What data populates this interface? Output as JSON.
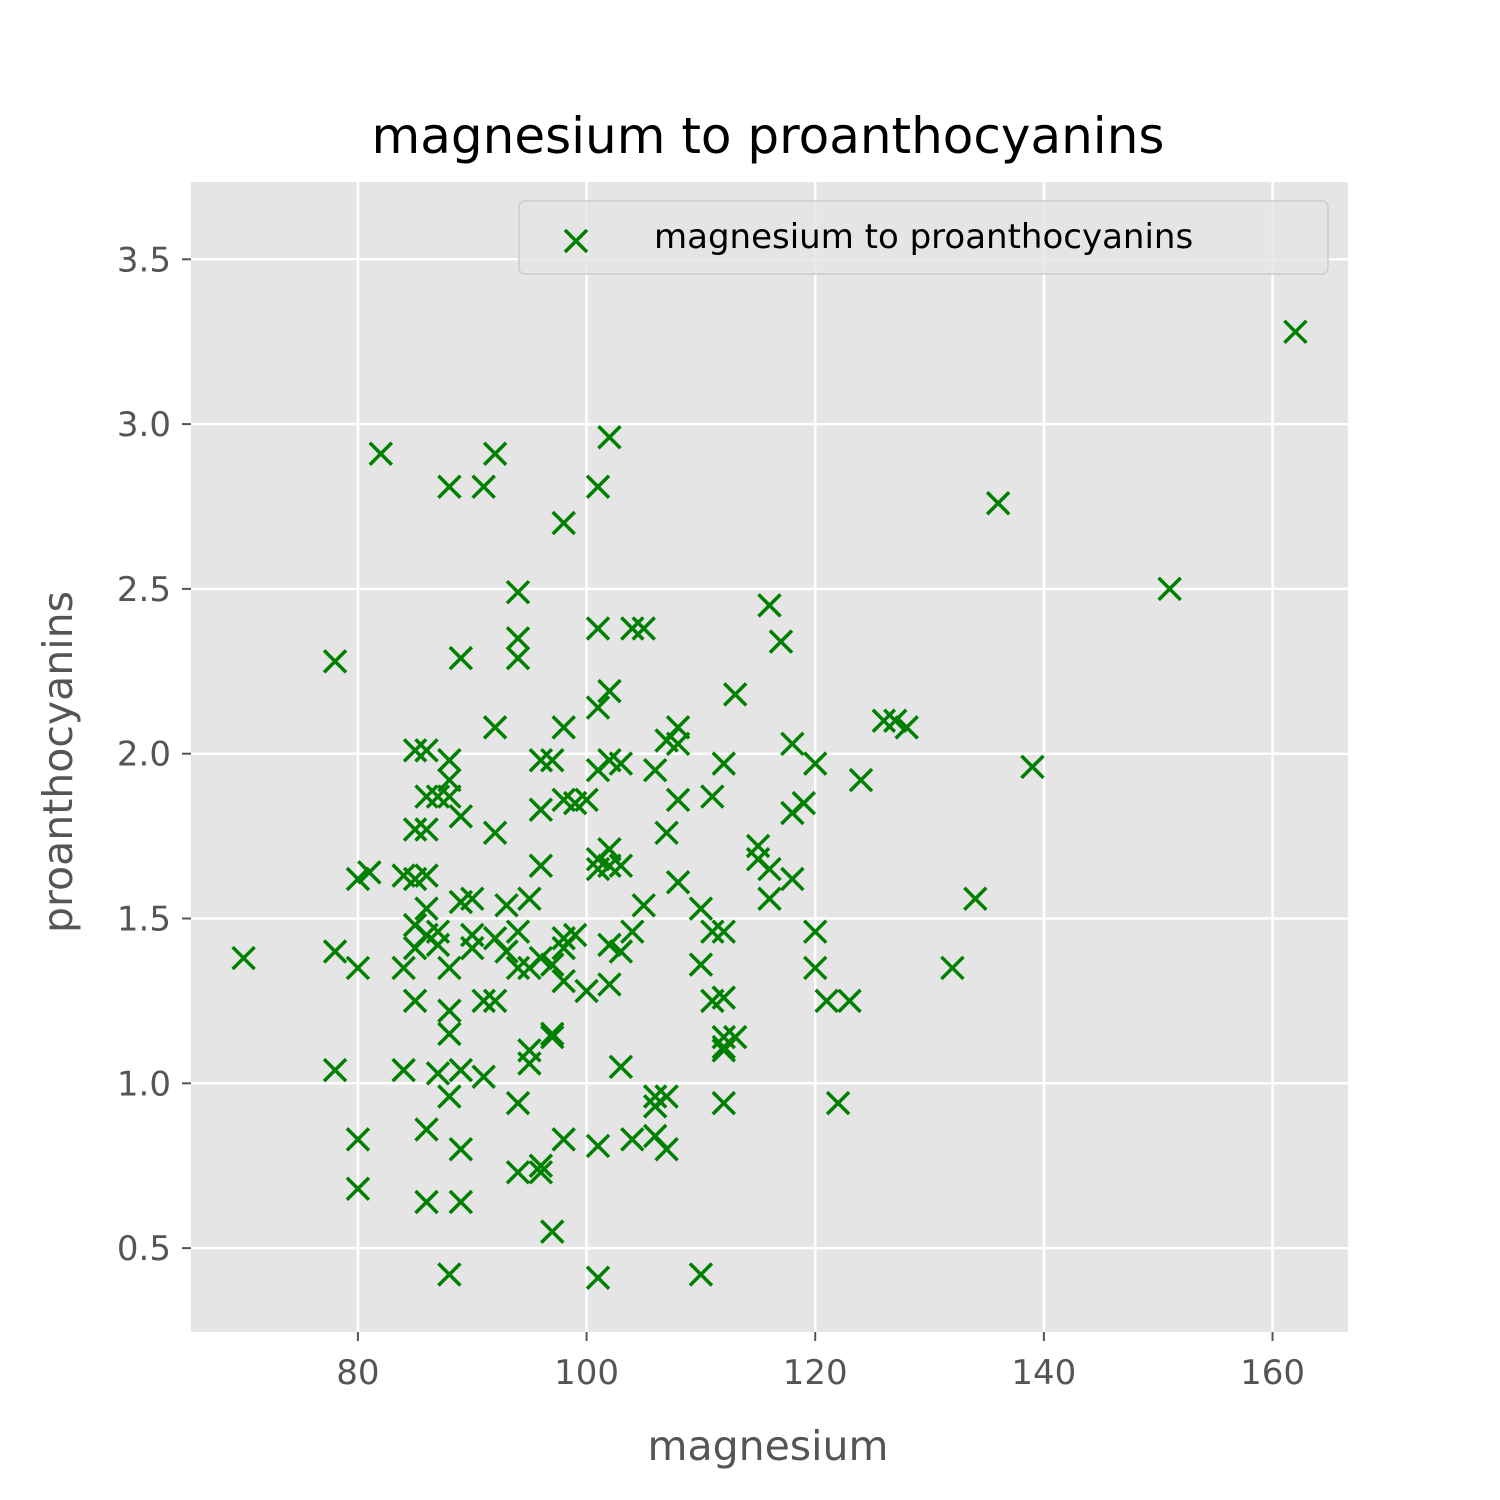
{
  "chart_data": {
    "type": "scatter",
    "title": "magnesium to proanthocyanins",
    "xlabel": "magnesium",
    "ylabel": "proanthocyanins",
    "xlim": [
      65.4,
      166.6
    ],
    "ylim": [
      0.2455,
      3.7345
    ],
    "xticks": [
      80,
      100,
      120,
      140,
      160
    ],
    "yticks": [
      0.5,
      1.0,
      1.5,
      2.0,
      2.5,
      3.0,
      3.5
    ],
    "xtick_labels": [
      "80",
      "100",
      "120",
      "140",
      "160"
    ],
    "ytick_labels": [
      "0.5",
      "1.0",
      "1.5",
      "2.0",
      "2.5",
      "3.0",
      "3.5"
    ],
    "grid": true,
    "legend": "top-right",
    "marker": "x",
    "color": "#008000",
    "background": "#e5e5e5",
    "series": [
      {
        "name": "magnesium to proanthocyanins",
        "x": [
          70,
          78,
          78,
          78,
          80,
          80,
          80,
          80,
          81,
          82,
          84,
          84,
          84,
          85,
          85,
          85,
          85,
          85,
          85,
          86,
          86,
          86,
          86,
          86,
          86,
          86,
          86,
          87,
          87,
          87,
          87,
          88,
          88,
          88,
          88,
          88,
          88,
          88,
          88,
          88,
          89,
          89,
          89,
          89,
          89,
          89,
          90,
          90,
          90,
          91,
          91,
          91,
          92,
          92,
          92,
          92,
          92,
          93,
          93,
          94,
          94,
          94,
          94,
          94,
          94,
          94,
          95,
          95,
          95,
          95,
          96,
          96,
          96,
          96,
          96,
          96,
          97,
          97,
          97,
          97,
          97,
          98,
          98,
          98,
          98,
          98,
          98,
          98,
          99,
          99,
          100,
          100,
          101,
          101,
          101,
          101,
          101,
          101,
          101,
          101,
          102,
          102,
          102,
          102,
          102,
          102,
          102,
          103,
          103,
          103,
          103,
          104,
          104,
          104,
          105,
          105,
          106,
          106,
          106,
          106,
          107,
          107,
          107,
          107,
          108,
          108,
          108,
          108,
          110,
          110,
          110,
          111,
          111,
          111,
          112,
          112,
          112,
          112,
          112,
          112,
          112,
          113,
          113,
          115,
          115,
          116,
          116,
          116,
          117,
          118,
          118,
          118,
          119,
          120,
          120,
          120,
          121,
          122,
          123,
          124,
          126,
          127,
          128,
          132,
          134,
          136,
          139,
          151,
          162
        ],
        "y": [
          1.38,
          2.28,
          1.4,
          1.04,
          1.62,
          1.35,
          0.83,
          0.68,
          1.64,
          2.91,
          1.63,
          1.35,
          1.04,
          2.01,
          1.77,
          1.62,
          1.48,
          1.41,
          1.25,
          2.01,
          1.87,
          1.77,
          1.63,
          1.53,
          1.45,
          0.86,
          0.64,
          1.87,
          1.46,
          1.42,
          1.03,
          2.81,
          1.98,
          1.92,
          1.87,
          1.35,
          1.22,
          1.15,
          0.96,
          0.42,
          2.29,
          1.81,
          1.55,
          1.04,
          0.8,
          0.64,
          1.56,
          1.45,
          1.41,
          2.81,
          1.25,
          1.02,
          2.91,
          2.08,
          1.76,
          1.25,
          1.44,
          1.54,
          1.4,
          2.49,
          2.35,
          2.29,
          1.46,
          1.35,
          0.94,
          0.73,
          1.56,
          1.35,
          1.1,
          1.06,
          1.98,
          1.83,
          1.66,
          1.38,
          0.75,
          0.73,
          1.98,
          1.14,
          1.15,
          0.55,
          1.36,
          2.7,
          2.08,
          1.86,
          1.44,
          1.41,
          1.31,
          0.83,
          1.85,
          1.45,
          1.86,
          1.28,
          2.81,
          2.38,
          2.14,
          1.95,
          1.68,
          1.65,
          0.81,
          0.41,
          2.96,
          2.19,
          1.98,
          1.71,
          1.66,
          1.42,
          1.3,
          1.97,
          1.66,
          1.4,
          1.05,
          2.38,
          1.46,
          0.83,
          2.38,
          1.54,
          1.95,
          0.96,
          0.93,
          0.84,
          2.04,
          1.76,
          0.96,
          0.8,
          2.08,
          2.03,
          1.86,
          1.61,
          1.53,
          1.36,
          0.42,
          1.87,
          1.46,
          1.25,
          1.97,
          1.46,
          1.26,
          1.14,
          1.1,
          0.94,
          1.11,
          1.14,
          2.18,
          1.72,
          1.68,
          2.45,
          1.65,
          1.56,
          2.34,
          2.03,
          1.82,
          1.62,
          1.85,
          1.97,
          1.46,
          1.35,
          1.25,
          0.94,
          1.25,
          1.92,
          2.1,
          2.1,
          2.08,
          1.35,
          1.56,
          2.76,
          1.96,
          2.5,
          3.28
        ]
      }
    ]
  }
}
